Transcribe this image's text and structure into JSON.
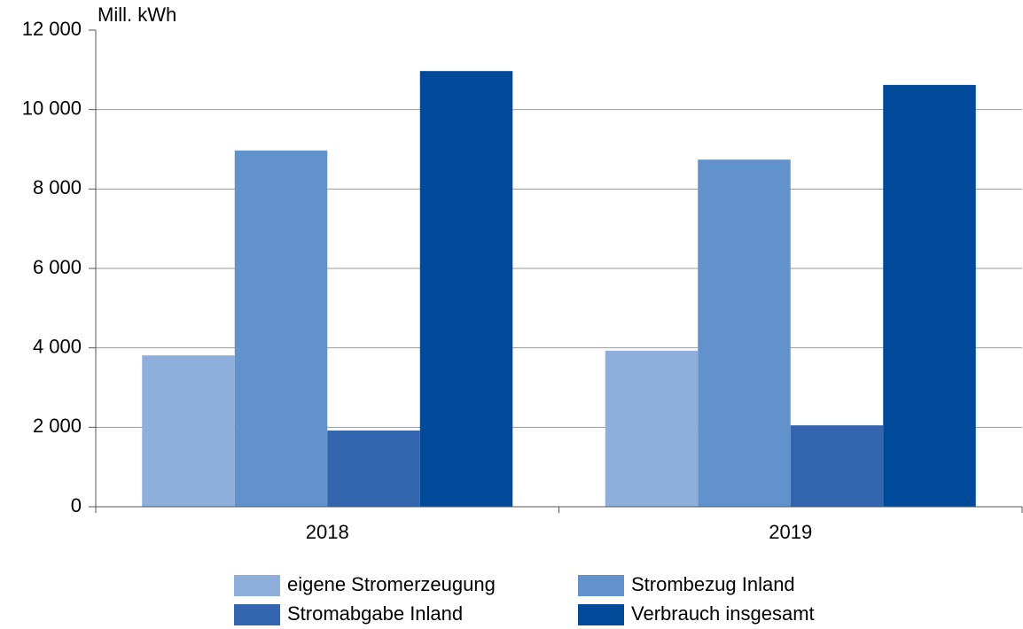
{
  "chart_data": {
    "type": "bar",
    "y_axis_label": "Mill. kWh",
    "categories": [
      "2018",
      "2019"
    ],
    "series": [
      {
        "name": "eigene Stromerzeugung",
        "color": "#8eaedb",
        "values": [
          3810,
          3930
        ]
      },
      {
        "name": "Strombezug Inland",
        "color": "#6292cc",
        "values": [
          8970,
          8740
        ]
      },
      {
        "name": "Stromabgabe Inland",
        "color": "#3466b0",
        "values": [
          1920,
          2050
        ]
      },
      {
        "name": "Verbrauch insgesamt",
        "color": "#004a99",
        "values": [
          10970,
          10620
        ]
      }
    ],
    "ylim": [
      0,
      12000
    ],
    "yticks": [
      0,
      {
        "value": 2000,
        "label": "2 000"
      },
      {
        "value": 4000,
        "label": "4 000"
      },
      {
        "value": 6000,
        "label": "6 000"
      },
      {
        "value": 8000,
        "label": "8 000"
      },
      {
        "value": 10000,
        "label": "10 000"
      },
      {
        "value": 12000,
        "label": "12 000"
      }
    ],
    "grid": true,
    "legend": "bottom"
  }
}
